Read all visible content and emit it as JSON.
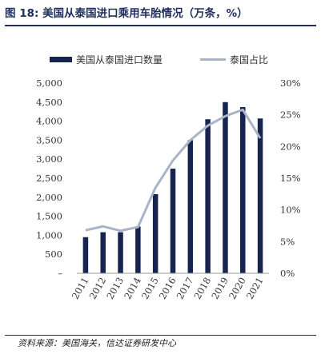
{
  "title": "图 18:  美国从泰国进口乘用车胎情况（万条，%）",
  "source": "资料来源：美国海关，信达证券研发中心",
  "colors": {
    "bar": "#16244f",
    "line": "#aab4c8",
    "title": "#1f2f5c",
    "text": "#333333"
  },
  "chart_data": {
    "type": "bar",
    "categories": [
      "2011",
      "2012",
      "2013",
      "2014",
      "2015",
      "2016",
      "2017",
      "2018",
      "2019",
      "2020",
      "2021"
    ],
    "series": [
      {
        "name": "美国从泰国进口数量",
        "type": "bar",
        "axis": "left",
        "values": [
          950,
          1080,
          1080,
          1230,
          2080,
          2750,
          3500,
          4050,
          4500,
          4370,
          4070
        ]
      },
      {
        "name": "泰国占比",
        "type": "line",
        "axis": "right",
        "values": [
          6.8,
          7.4,
          6.7,
          7.3,
          13.5,
          17.8,
          21.0,
          23.3,
          24.8,
          25.8,
          21.3
        ]
      }
    ],
    "y_left": {
      "min": 0,
      "max": 5000,
      "ticks": [
        "–",
        "500",
        "1,000",
        "1,500",
        "2,000",
        "2,500",
        "3,000",
        "3,500",
        "4,000",
        "4,500",
        "5,000"
      ]
    },
    "y_right": {
      "min": 0,
      "max": 30,
      "ticks": [
        "0%",
        "5%",
        "10%",
        "15%",
        "20%",
        "25%",
        "30%"
      ]
    },
    "legend_position": "top",
    "grid": false
  }
}
